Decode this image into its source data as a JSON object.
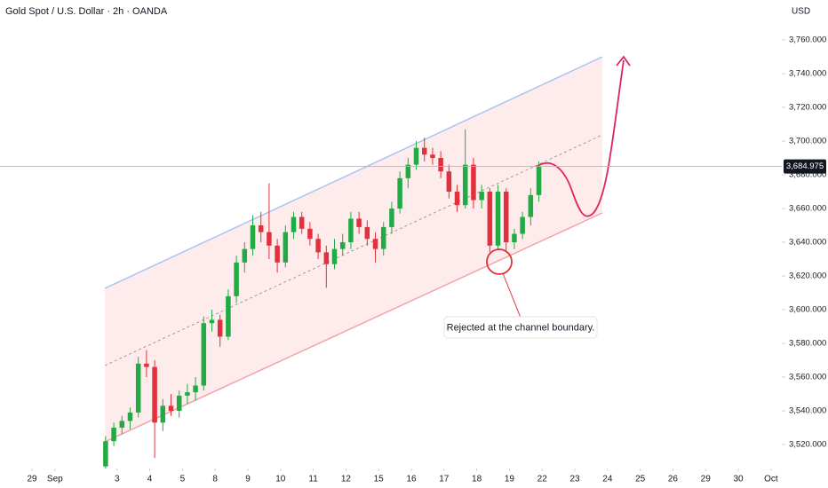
{
  "chart_data": {
    "type": "candlestick",
    "title": "Gold Spot / U.S. Dollar · 2h · OANDA",
    "y_axis_label": "USD",
    "up_color": "#22ab45",
    "down_color": "#e0313d",
    "xlim": [
      -0.98,
      22.93
    ],
    "ylim": [
      3505.8,
      3783.7
    ],
    "xticks": [
      {
        "value": 0,
        "label": "29"
      },
      {
        "value": 0.7,
        "label": "Sep"
      },
      {
        "value": 2.6,
        "label": "3"
      },
      {
        "value": 3.6,
        "label": "4"
      },
      {
        "value": 4.6,
        "label": "5"
      },
      {
        "value": 5.6,
        "label": "8"
      },
      {
        "value": 6.6,
        "label": "9"
      },
      {
        "value": 7.6,
        "label": "10"
      },
      {
        "value": 8.6,
        "label": "11"
      },
      {
        "value": 9.6,
        "label": "12"
      },
      {
        "value": 10.6,
        "label": "15"
      },
      {
        "value": 11.6,
        "label": "16"
      },
      {
        "value": 12.6,
        "label": "17"
      },
      {
        "value": 13.6,
        "label": "18"
      },
      {
        "value": 14.6,
        "label": "19"
      },
      {
        "value": 15.6,
        "label": "22"
      },
      {
        "value": 16.6,
        "label": "23"
      },
      {
        "value": 17.6,
        "label": "24"
      },
      {
        "value": 18.6,
        "label": "25"
      },
      {
        "value": 19.6,
        "label": "26"
      },
      {
        "value": 20.6,
        "label": "29"
      },
      {
        "value": 21.6,
        "label": "30"
      },
      {
        "value": 22.6,
        "label": "Oct"
      }
    ],
    "yticks": [
      {
        "value": 3520,
        "label": "3,520.000"
      },
      {
        "value": 3540,
        "label": "3,540.000"
      },
      {
        "value": 3560,
        "label": "3,560.000"
      },
      {
        "value": 3580,
        "label": "3,580.000"
      },
      {
        "value": 3600,
        "label": "3,600.000"
      },
      {
        "value": 3620,
        "label": "3,620.000"
      },
      {
        "value": 3640,
        "label": "3,640.000"
      },
      {
        "value": 3660,
        "label": "3,660.000"
      },
      {
        "value": 3680,
        "label": "3,680.000"
      },
      {
        "value": 3700,
        "label": "3,700.000"
      },
      {
        "value": 3720,
        "label": "3,720.000"
      },
      {
        "value": 3740,
        "label": "3,740.000"
      },
      {
        "value": 3760,
        "label": "3,760.000"
      }
    ],
    "price_line": {
      "value": 3684.975,
      "label": "3,684.975"
    },
    "annotations": [
      {
        "text": "Rejected at the channel boundary."
      }
    ],
    "x": [
      2.25,
      2.5,
      2.75,
      3,
      3.25,
      3.5,
      3.75,
      4,
      4.25,
      4.5,
      4.75,
      5,
      5.25,
      5.5,
      5.75,
      6,
      6.25,
      6.5,
      6.75,
      7,
      7.25,
      7.5,
      7.75,
      8,
      8.25,
      8.5,
      8.75,
      9,
      9.25,
      9.5,
      9.75,
      10,
      10.25,
      10.5,
      10.75,
      11,
      11.25,
      11.5,
      11.75,
      12,
      12.25,
      12.5,
      12.75,
      13,
      13.25,
      13.5,
      13.75,
      14,
      14.25,
      14.5,
      14.75,
      15,
      15.25,
      15.5
    ],
    "open": [
      3507,
      3522,
      3530,
      3534,
      3539,
      3568,
      3566,
      3533,
      3543,
      3540,
      3549,
      3551,
      3555,
      3592,
      3594,
      3584,
      3608,
      3628,
      3636,
      3650,
      3646,
      3638,
      3628,
      3646,
      3655,
      3648,
      3642,
      3634,
      3627,
      3636,
      3640,
      3654,
      3649,
      3642,
      3636,
      3649,
      3660,
      3678,
      3686,
      3696,
      3692,
      3690,
      3682,
      3670,
      3662,
      3686,
      3665,
      3670,
      3638,
      3670,
      3640,
      3645,
      3655,
      3668
    ],
    "high": [
      3525,
      3533,
      3537,
      3542,
      3572,
      3576,
      3570,
      3547,
      3550,
      3552,
      3556,
      3560,
      3596,
      3600,
      3597,
      3612,
      3632,
      3640,
      3656,
      3658,
      3675,
      3642,
      3650,
      3658,
      3658,
      3652,
      3645,
      3638,
      3642,
      3645,
      3658,
      3658,
      3653,
      3646,
      3652,
      3664,
      3682,
      3690,
      3700,
      3702,
      3696,
      3694,
      3686,
      3674,
      3707,
      3690,
      3674,
      3672,
      3674,
      3672,
      3648,
      3658,
      3672,
      3688
    ],
    "low": [
      3504,
      3519,
      3526,
      3529,
      3536,
      3560,
      3512,
      3528,
      3537,
      3536,
      3544,
      3546,
      3552,
      3587,
      3578,
      3582,
      3604,
      3622,
      3632,
      3640,
      3630,
      3622,
      3625,
      3642,
      3645,
      3638,
      3630,
      3613,
      3624,
      3632,
      3636,
      3645,
      3638,
      3628,
      3632,
      3645,
      3657,
      3672,
      3683,
      3688,
      3686,
      3678,
      3666,
      3658,
      3660,
      3660,
      3660,
      3634,
      3636,
      3634,
      3636,
      3642,
      3650,
      3664
    ],
    "close": [
      3522,
      3530,
      3534,
      3539,
      3568,
      3566,
      3533,
      3543,
      3540,
      3549,
      3551,
      3555,
      3592,
      3594,
      3584,
      3608,
      3628,
      3636,
      3650,
      3646,
      3638,
      3628,
      3646,
      3655,
      3648,
      3642,
      3634,
      3627,
      3636,
      3640,
      3654,
      3649,
      3642,
      3636,
      3649,
      3660,
      3678,
      3686,
      3696,
      3692,
      3690,
      3682,
      3670,
      3662,
      3686,
      3665,
      3670,
      3638,
      3670,
      3640,
      3645,
      3655,
      3668,
      3684.975
    ]
  }
}
